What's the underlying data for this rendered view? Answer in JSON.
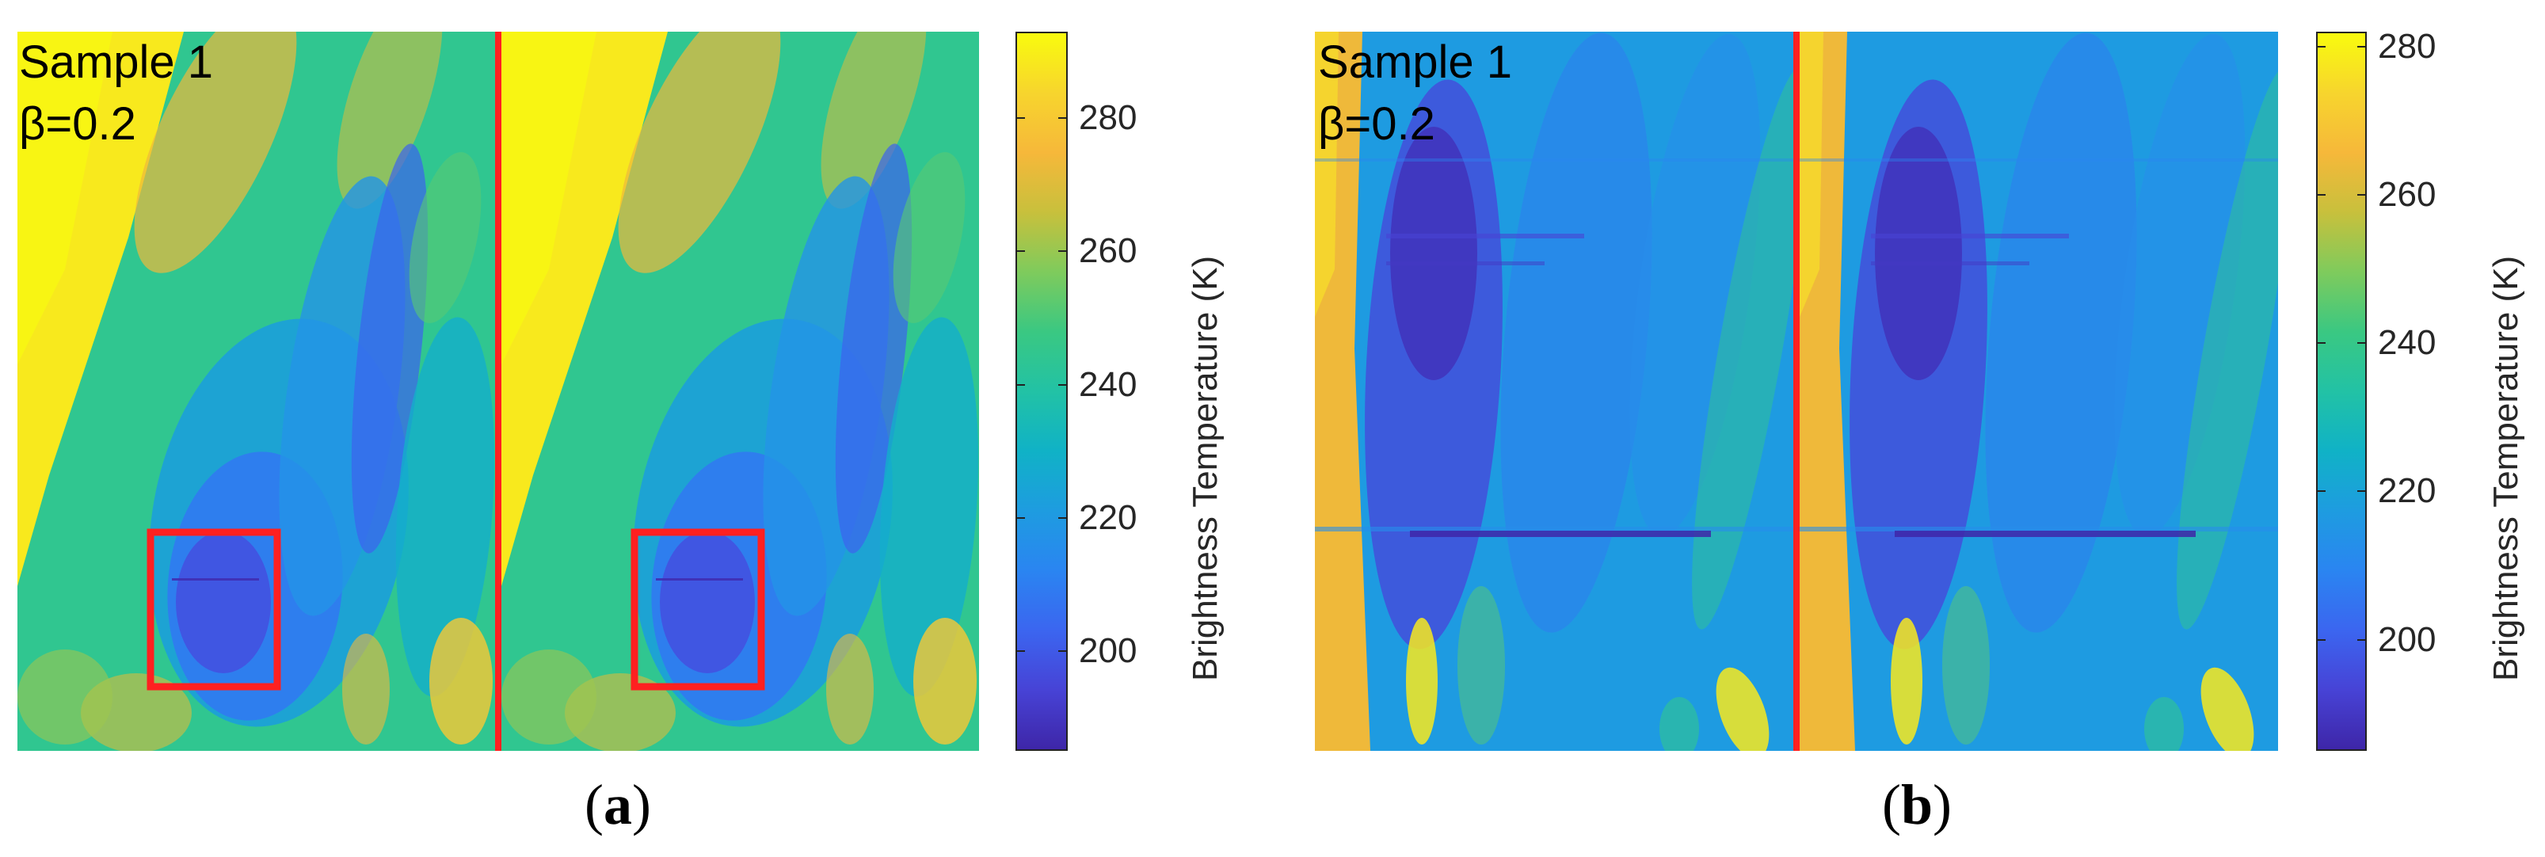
{
  "colormap": [
    "#3e26a8",
    "#4743d6",
    "#3b66f0",
    "#2a85f1",
    "#1e9ce0",
    "#10b2c6",
    "#22c2a5",
    "#3ac882",
    "#7fcb5c",
    "#c8c03c",
    "#f6b83a",
    "#f7d52d",
    "#f9fb0e"
  ],
  "divider_color": "#ff2020",
  "box_color": "#ff2020",
  "chart_data": [
    {
      "type": "heatmap",
      "panel_label": "a",
      "sample_text": "Sample 1",
      "beta_text": "β=0.2",
      "colorbar": {
        "label": "Brightness Temperature (K)",
        "range": [
          185,
          293
        ],
        "ticks": [
          200,
          220,
          240,
          260,
          280
        ],
        "tick_labels": [
          "200",
          "220",
          "240",
          "260",
          "280"
        ]
      },
      "halves": 2,
      "highlight_box": true
    },
    {
      "type": "heatmap",
      "panel_label": "b",
      "sample_text": "Sample 1",
      "beta_text": "β=0.2",
      "colorbar": {
        "label": "Brightness Temperature (K)",
        "range": [
          185,
          282
        ],
        "ticks": [
          200,
          220,
          240,
          260,
          280
        ],
        "tick_labels": [
          "200",
          "220",
          "240",
          "260",
          "280"
        ]
      },
      "halves": 2,
      "highlight_box": false
    }
  ]
}
